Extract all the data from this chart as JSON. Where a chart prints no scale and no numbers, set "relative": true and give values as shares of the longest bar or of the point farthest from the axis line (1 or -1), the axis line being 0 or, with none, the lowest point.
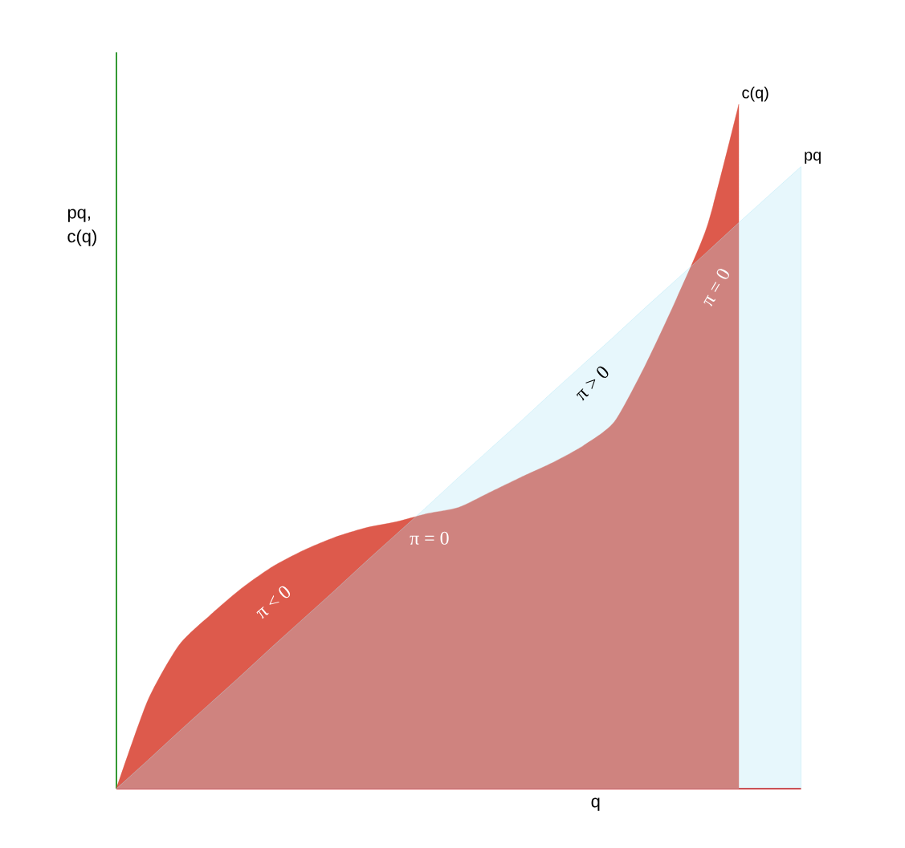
{
  "chart_data": {
    "type": "area",
    "relative": true,
    "xlabel": "q",
    "ylabel": "pq, c(q)",
    "categories": [
      null,
      null,
      null,
      null,
      null,
      null,
      null,
      null,
      null,
      null,
      null,
      null,
      null,
      null,
      null,
      null,
      null,
      null,
      null,
      null,
      null,
      null,
      null
    ],
    "series": [
      {
        "name": "c(q)",
        "color": "#dd5a4c",
        "values": [
          0,
          0.128,
          0.209,
          0.253,
          0.292,
          0.324,
          0.348,
          0.367,
          0.381,
          0.39,
          0.402,
          0.411,
          0.433,
          0.455,
          0.476,
          0.501,
          0.536,
          0.619,
          0.716,
          0.824,
          1,
          null,
          null
        ]
      },
      {
        "name": "pq",
        "color": "#aee6f5",
        "values": [
          0,
          0.041,
          0.083,
          0.124,
          0.165,
          0.207,
          0.248,
          0.289,
          0.331,
          0.372,
          0.413,
          0.455,
          0.496,
          0.537,
          0.579,
          0.62,
          0.661,
          0.703,
          0.744,
          0.785,
          0.827,
          0.868,
          0.909
        ]
      }
    ],
    "annotations": [
      "π < 0",
      "π = 0",
      "π > 0",
      "π = 0"
    ]
  }
}
